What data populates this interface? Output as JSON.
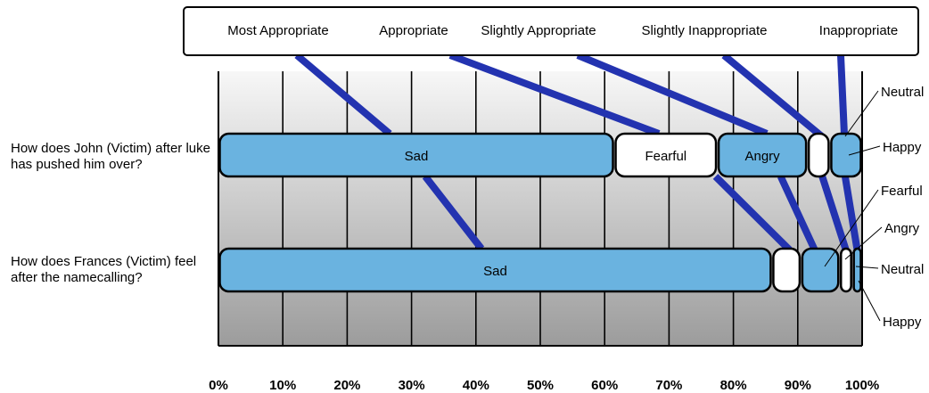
{
  "chart_data": {
    "type": "bar",
    "stacked": true,
    "orientation": "horizontal",
    "categories": [
      "How does John (Victim) after luke has pushed him over?",
      "How does Frances (Victim) feel after the namecalling?"
    ],
    "bars": [
      {
        "question": "How does John (Victim) after luke has pushed him over?",
        "segments": [
          {
            "name": "Sad",
            "start": 0,
            "end": 61.5,
            "color": "#6ab3e0",
            "label": "Sad"
          },
          {
            "name": "Fearful",
            "start": 61.5,
            "end": 77.5,
            "color": "#ffffff",
            "label": "Fearful"
          },
          {
            "name": "Angry",
            "start": 77.5,
            "end": 91.5,
            "color": "#6ab3e0",
            "label": "Angry"
          },
          {
            "name": "Neutral",
            "start": 91.5,
            "end": 95,
            "color": "#ffffff",
            "label": ""
          },
          {
            "name": "Happy",
            "start": 95,
            "end": 100,
            "color": "#6ab3e0",
            "label": ""
          }
        ],
        "side_labels": [
          "Neutral",
          "Happy"
        ]
      },
      {
        "question": "How does Frances (Victim) feel after the namecalling?",
        "segments": [
          {
            "name": "Sad",
            "start": 0,
            "end": 86,
            "color": "#6ab3e0",
            "label": "Sad"
          },
          {
            "name": "Fearful",
            "start": 86,
            "end": 90.5,
            "color": "#ffffff",
            "label": ""
          },
          {
            "name": "Angry",
            "start": 90.5,
            "end": 96.5,
            "color": "#6ab3e0",
            "label": ""
          },
          {
            "name": "Neutral",
            "start": 96.5,
            "end": 98.5,
            "color": "#ffffff",
            "label": ""
          },
          {
            "name": "Happy",
            "start": 98.5,
            "end": 100,
            "color": "#6ab3e0",
            "label": ""
          }
        ],
        "side_labels": [
          "Fearful",
          "Angry",
          "Neutral",
          "Happy"
        ]
      }
    ],
    "legend": {
      "placement": "top",
      "items": [
        "Most Appropriate",
        "Appropriate",
        "Slightly Appropriate",
        "Slightly Inappropriate",
        "Inappropriate"
      ]
    },
    "xlim": [
      0,
      100
    ],
    "xticks": [
      "0%",
      "10%",
      "20%",
      "30%",
      "40%",
      "50%",
      "60%",
      "70%",
      "80%",
      "90%",
      "100%"
    ],
    "grid": true,
    "colors": {
      "bar_blue": "#6ab3e0",
      "bar_white": "#ffffff",
      "link_line": "#2333b0",
      "plot_top": "#f7f7f7",
      "plot_bottom": "#9c9c9c"
    }
  }
}
